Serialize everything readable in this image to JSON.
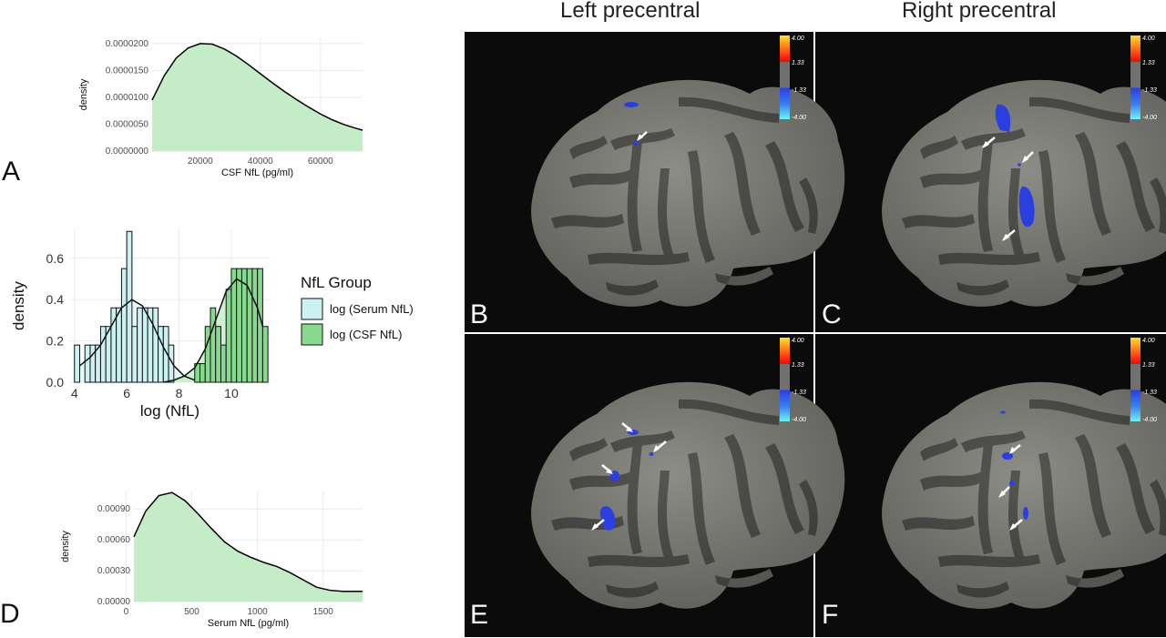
{
  "figure": {
    "panel_labels": [
      "A",
      "B",
      "C",
      "D",
      "E",
      "F"
    ],
    "column_titles": [
      "Left precentral",
      "Right precentral"
    ],
    "colorbar_ticks": [
      "4.00",
      "1.33",
      "-1.33",
      "-4.00"
    ],
    "colors": {
      "csf_fill": "#c4ecc6",
      "serum_fill": "#dff6f4",
      "csf_hist": "#86d98f",
      "serum_hist": "#cdf1f1",
      "brain_bg": "#0b0b0b",
      "cortex_light": "#8d8d87",
      "cortex_dark": "#555552",
      "cluster_blue": "#2b3fe0"
    }
  },
  "chart_data": [
    {
      "id": "A",
      "type": "area",
      "xlabel": "CSF NfL (pg/ml)",
      "ylabel": "density",
      "xlim": [
        4000,
        74000
      ],
      "ylim": [
        0,
        2.1e-05
      ],
      "xticks": [
        20000,
        40000,
        60000
      ],
      "xtick_labels": [
        "20000",
        "40000",
        "60000"
      ],
      "yticks": [
        0,
        5e-06,
        1e-05,
        1.5e-05,
        2e-05
      ],
      "ytick_labels": [
        "0.0000000",
        "0.0000050",
        "0.0000100",
        "0.0000150",
        "0.0000200"
      ],
      "grid": true,
      "x": [
        4000,
        8000,
        12000,
        16000,
        20000,
        24000,
        28000,
        32000,
        36000,
        40000,
        44000,
        48000,
        52000,
        56000,
        60000,
        64000,
        68000,
        72000,
        74000
      ],
      "y": [
        9.5e-06,
        1.4e-05,
        1.73e-05,
        1.92e-05,
        2e-05,
        1.99e-05,
        1.9e-05,
        1.77e-05,
        1.61e-05,
        1.44e-05,
        1.27e-05,
        1.11e-05,
        9.6e-06,
        8.2e-06,
        6.9e-06,
        5.8e-06,
        4.9e-06,
        4.2e-06,
        3.9e-06
      ]
    },
    {
      "id": "middle",
      "type": "bar",
      "xlabel": "log (NfL)",
      "ylabel": "density",
      "xlim": [
        3.8,
        11.5
      ],
      "ylim": [
        0,
        0.74
      ],
      "xticks": [
        4,
        6,
        8,
        10
      ],
      "xtick_labels": [
        "4",
        "6",
        "8",
        "10"
      ],
      "yticks": [
        0,
        0.2,
        0.4,
        0.6
      ],
      "ytick_labels": [
        "0.0",
        "0.2",
        "0.4",
        "0.6"
      ],
      "grid": true,
      "legend_title": "NfL Group",
      "legend_position": "right",
      "series": [
        {
          "name": "log (Serum NfL)",
          "bins_start": 4.0,
          "bin_width": 0.2,
          "values": [
            0.18,
            0.0,
            0.18,
            0.18,
            0.18,
            0.27,
            0.27,
            0.36,
            0.36,
            0.55,
            0.73,
            0.27,
            0.36,
            0.36,
            0.36,
            0.36,
            0.27,
            0.27,
            0.18,
            0.0
          ],
          "density_x": [
            4.2,
            4.6,
            5.0,
            5.4,
            5.8,
            6.2,
            6.6,
            7.0,
            7.4,
            7.8,
            8.2,
            8.6
          ],
          "density_y": [
            0.08,
            0.12,
            0.18,
            0.27,
            0.36,
            0.4,
            0.37,
            0.28,
            0.17,
            0.08,
            0.03,
            0.01
          ]
        },
        {
          "name": "log (CSF NfL)",
          "bins_start": 7.4,
          "bin_width": 0.2,
          "values": [
            0.0,
            0.0,
            0.0,
            0.0,
            0.0,
            0.0,
            0.09,
            0.09,
            0.27,
            0.36,
            0.27,
            0.18,
            0.45,
            0.55,
            0.55,
            0.55,
            0.55,
            0.55,
            0.55,
            0.27
          ],
          "density_x": [
            7.4,
            7.8,
            8.2,
            8.6,
            9.0,
            9.4,
            9.8,
            10.2,
            10.6,
            11.0,
            11.2
          ],
          "density_y": [
            0.0,
            0.01,
            0.03,
            0.07,
            0.16,
            0.3,
            0.44,
            0.5,
            0.47,
            0.36,
            0.27
          ]
        }
      ]
    },
    {
      "id": "D",
      "type": "area",
      "xlabel": "Serum NfL (pg/ml)",
      "ylabel": "density",
      "xlim": [
        60,
        1800
      ],
      "ylim": [
        0,
        0.00107
      ],
      "xticks": [
        0,
        500,
        1000,
        1500
      ],
      "xtick_labels": [
        "0",
        "500",
        "1000",
        "1500"
      ],
      "yticks": [
        0,
        0.0003,
        0.0006,
        0.0009
      ],
      "ytick_labels": [
        "0.00000",
        "0.00030",
        "0.00060",
        "0.00090"
      ],
      "grid": true,
      "x": [
        60,
        150,
        250,
        350,
        450,
        550,
        650,
        750,
        850,
        950,
        1050,
        1150,
        1250,
        1350,
        1450,
        1550,
        1650,
        1800
      ],
      "y": [
        0.00063,
        0.00088,
        0.00103,
        0.00106,
        0.00098,
        0.00085,
        0.00071,
        0.00058,
        0.00049,
        0.00043,
        0.00038,
        0.00034,
        0.00028,
        0.00021,
        0.00014,
        0.00011,
        0.0001,
        0.0001
      ]
    }
  ]
}
